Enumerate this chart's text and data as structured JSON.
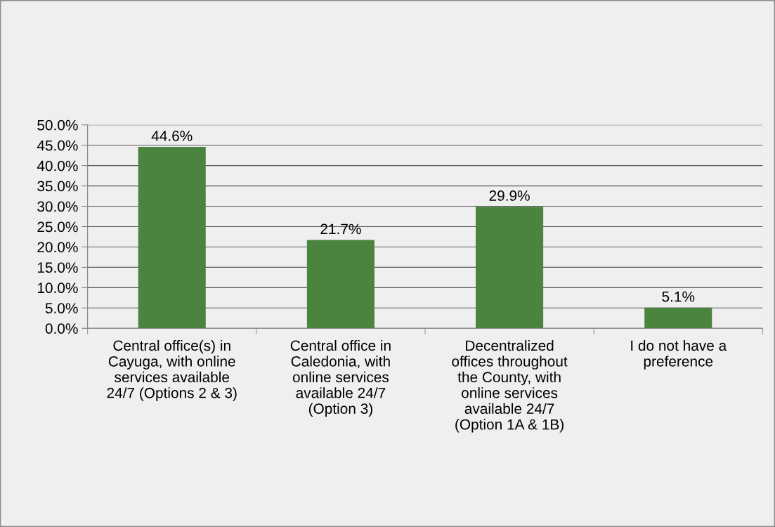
{
  "chart_data": {
    "type": "bar",
    "categories": [
      "Central office(s) in\nCayuga, with online\nservices available\n24/7 (Options 2 & 3)",
      "Central office in\nCaledonia, with\nonline services\navailable 24/7\n(Option 3)",
      "Decentralized\noffices throughout\nthe County, with\nonline services\navailable 24/7\n(Option 1A & 1B)",
      "I do not have a\npreference"
    ],
    "values": [
      44.6,
      21.7,
      29.9,
      5.1
    ],
    "value_labels": [
      "44.6%",
      "21.7%",
      "29.9%",
      "5.1%"
    ],
    "color": "#4a843f",
    "ylim": [
      0,
      50
    ],
    "yticks": [
      {
        "value": 0,
        "label": "0.0%"
      },
      {
        "value": 5,
        "label": "5.0%"
      },
      {
        "value": 10,
        "label": "10.0%"
      },
      {
        "value": 15,
        "label": "15.0%"
      },
      {
        "value": 20,
        "label": "20.0%"
      },
      {
        "value": 25,
        "label": "25.0%"
      },
      {
        "value": 30,
        "label": "30.0%"
      },
      {
        "value": 35,
        "label": "35.0%"
      },
      {
        "value": 40,
        "label": "40.0%"
      },
      {
        "value": 45,
        "label": "45.0%"
      },
      {
        "value": 50,
        "label": "50.0%"
      }
    ],
    "grid": "y"
  }
}
